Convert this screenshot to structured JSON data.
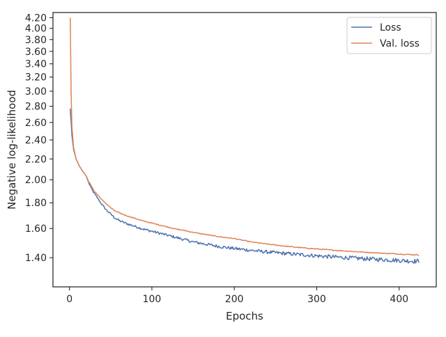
{
  "chart_data": {
    "type": "line",
    "title": "",
    "xlabel": "Epochs",
    "ylabel": "Negative log-likelihood",
    "yscale": "log",
    "xlim": [
      -20,
      445
    ],
    "ylim": [
      1.225,
      4.3
    ],
    "xticks": [
      0,
      100,
      200,
      300,
      400
    ],
    "xtick_labels": [
      "0",
      "100",
      "200",
      "300",
      "400"
    ],
    "yticks": [
      1.4,
      1.6,
      1.8,
      2.0,
      2.2,
      2.4,
      2.6,
      2.8,
      3.0,
      3.2,
      3.4,
      3.6,
      3.8,
      4.0,
      4.2
    ],
    "ytick_labels": [
      "1.40",
      "1.60",
      "1.80",
      "2.00",
      "2.20",
      "2.40",
      "2.60",
      "2.80",
      "3.00",
      "3.20",
      "3.40",
      "3.60",
      "3.80",
      "4.00",
      "4.20"
    ],
    "grid": false,
    "legend_position": "top-right",
    "series": [
      {
        "name": "Loss",
        "color": "#4c72b0",
        "noise": 0.007,
        "x": [
          1,
          3,
          5,
          8,
          12,
          16,
          20,
          23,
          26,
          30,
          35,
          40,
          45,
          50,
          55,
          60,
          70,
          80,
          90,
          100,
          110,
          120,
          130,
          140,
          150,
          160,
          170,
          180,
          190,
          200,
          220,
          240,
          260,
          280,
          300,
          320,
          340,
          360,
          380,
          400,
          410,
          420,
          424
        ],
        "y": [
          2.77,
          2.45,
          2.3,
          2.2,
          2.13,
          2.08,
          2.04,
          1.98,
          1.93,
          1.88,
          1.83,
          1.78,
          1.74,
          1.71,
          1.68,
          1.66,
          1.635,
          1.615,
          1.595,
          1.58,
          1.565,
          1.55,
          1.535,
          1.52,
          1.505,
          1.495,
          1.485,
          1.475,
          1.467,
          1.46,
          1.448,
          1.437,
          1.428,
          1.42,
          1.412,
          1.405,
          1.399,
          1.393,
          1.388,
          1.383,
          1.38,
          1.378,
          1.378
        ]
      },
      {
        "name": "Val. loss",
        "color": "#dd8452",
        "noise": 0.003,
        "x": [
          1,
          2,
          3,
          5,
          8,
          12,
          16,
          20,
          23,
          26,
          30,
          35,
          40,
          45,
          50,
          55,
          60,
          70,
          80,
          90,
          100,
          110,
          120,
          130,
          140,
          150,
          160,
          170,
          180,
          190,
          200,
          220,
          240,
          260,
          280,
          300,
          320,
          340,
          360,
          380,
          400,
          410,
          420,
          424
        ],
        "y": [
          4.2,
          3.0,
          2.55,
          2.32,
          2.2,
          2.13,
          2.08,
          2.04,
          1.99,
          1.95,
          1.9,
          1.86,
          1.82,
          1.79,
          1.76,
          1.735,
          1.72,
          1.695,
          1.675,
          1.655,
          1.64,
          1.625,
          1.61,
          1.595,
          1.585,
          1.572,
          1.562,
          1.552,
          1.543,
          1.535,
          1.528,
          1.505,
          1.49,
          1.477,
          1.466,
          1.457,
          1.449,
          1.442,
          1.435,
          1.429,
          1.424,
          1.421,
          1.419,
          1.418
        ]
      }
    ]
  }
}
